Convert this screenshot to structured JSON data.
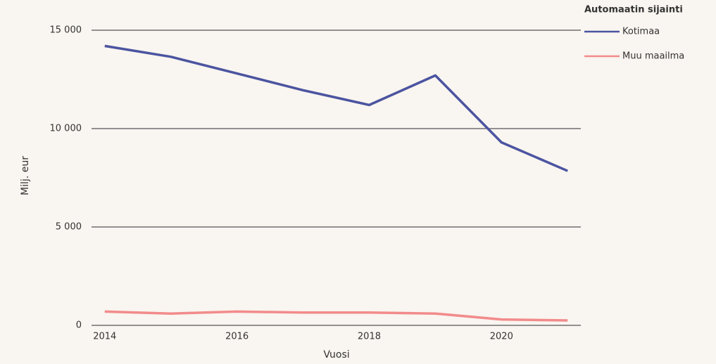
{
  "chart_data": {
    "type": "line",
    "x": [
      2014,
      2015,
      2016,
      2017,
      2018,
      2019,
      2020,
      2021
    ],
    "series": [
      {
        "name": "Kotimaa",
        "color": "#4b54a0",
        "values": [
          14200,
          13650,
          12800,
          11950,
          11200,
          12700,
          9300,
          7850
        ]
      },
      {
        "name": "Muu maailma",
        "color": "#f28b8b",
        "values": [
          700,
          600,
          700,
          650,
          650,
          600,
          300,
          250
        ]
      }
    ],
    "xlabel": "Vuosi",
    "ylabel": "Milj. eur",
    "legend_title": "Automaatin sijainti",
    "xlim": [
      2013.8,
      2021.2
    ],
    "ylim": [
      0,
      15000
    ],
    "xticks": [
      2014,
      2016,
      2018,
      2020
    ],
    "yticks": [
      0,
      {
        "value": 5000,
        "label": "5 000"
      },
      {
        "value": 10000,
        "label": "10 000"
      },
      {
        "value": 15000,
        "label": "15 000"
      }
    ],
    "grid": true,
    "legend": "top-right"
  }
}
